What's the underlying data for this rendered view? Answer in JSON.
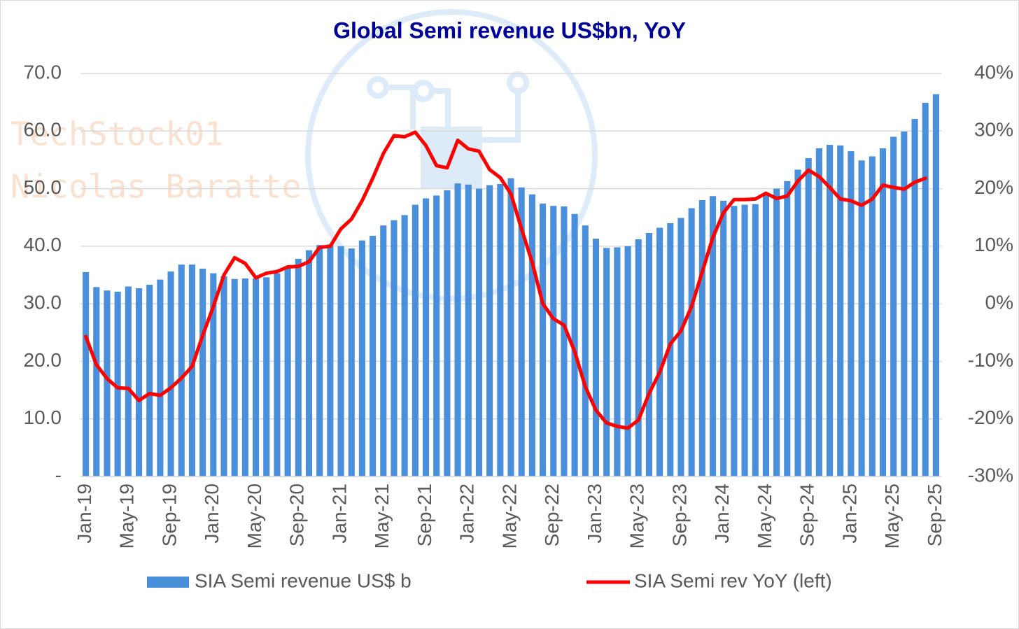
{
  "chart_data": {
    "type": "bar+line",
    "title": "Global Semi revenue US$bn, YoY",
    "watermark": [
      "TechStock01",
      "Nicolas Baratte"
    ],
    "categories": [
      "Jan-19",
      null,
      null,
      null,
      "May-19",
      null,
      null,
      null,
      "Sep-19",
      null,
      null,
      null,
      "Jan-20",
      null,
      null,
      null,
      "May-20",
      null,
      null,
      null,
      "Sep-20",
      null,
      null,
      null,
      "Jan-21",
      null,
      null,
      null,
      "May-21",
      null,
      null,
      null,
      "Sep-21",
      null,
      null,
      null,
      "Jan-22",
      null,
      null,
      null,
      "May-22",
      null,
      null,
      null,
      "Sep-22",
      null,
      null,
      null,
      "Jan-23",
      null,
      null,
      null,
      "May-23",
      null,
      null,
      null,
      "Sep-23",
      null,
      null,
      null,
      "Jan-24",
      null,
      null,
      null,
      "May-24",
      null,
      null,
      null,
      "Sep-24",
      null,
      null,
      null,
      "Jan-25",
      null,
      null,
      null,
      "May-25",
      null,
      null,
      null,
      "Sep-25"
    ],
    "series": [
      {
        "name": "SIA Semi revenue US$ b",
        "type": "bar",
        "color": "#4a8fdb",
        "values": [
          35.5,
          32.9,
          32.3,
          32.1,
          33.0,
          32.7,
          33.3,
          34.2,
          35.6,
          36.8,
          36.8,
          36.1,
          35.3,
          34.8,
          34.3,
          34.4,
          34.4,
          34.6,
          35.3,
          36.4,
          37.8,
          39.3,
          40.2,
          40.3,
          40.0,
          39.6,
          41.0,
          41.8,
          43.6,
          44.5,
          45.4,
          47.2,
          48.3,
          48.8,
          49.7,
          50.9,
          50.7,
          50.0,
          50.6,
          50.8,
          51.8,
          50.2,
          49.0,
          47.4,
          47.0,
          46.9,
          45.6,
          43.6,
          41.3,
          39.7,
          39.8,
          40.0,
          41.2,
          42.3,
          43.2,
          44.0,
          44.9,
          46.6,
          48.0,
          48.7,
          47.9,
          47.0,
          47.2,
          47.3,
          48.9,
          50.0,
          51.3,
          53.3,
          55.3,
          57.0,
          57.6,
          57.5,
          56.5,
          54.9,
          55.6,
          57.0,
          59.0,
          59.9,
          62.1,
          64.9,
          66.4
        ]
      },
      {
        "name": "SIA Semi rev YoY (left)",
        "type": "line",
        "axis": "y2",
        "color": "#ff0000",
        "values": [
          -5.7,
          -10.6,
          -13.0,
          -14.6,
          -14.7,
          -16.8,
          -15.6,
          -15.9,
          -14.6,
          -12.9,
          -10.9,
          -5.5,
          -0.5,
          5.0,
          8.0,
          7.0,
          4.5,
          5.3,
          5.6,
          6.4,
          6.5,
          7.3,
          9.8,
          10.0,
          13.0,
          14.7,
          17.9,
          21.8,
          26.1,
          29.2,
          29.0,
          29.8,
          27.5,
          24.0,
          23.6,
          28.4,
          26.9,
          26.5,
          23.3,
          21.9,
          19.1,
          13.0,
          7.2,
          0.0,
          -2.6,
          -3.7,
          -8.3,
          -14.4,
          -18.5,
          -20.7,
          -21.3,
          -21.6,
          -20.2,
          -15.6,
          -11.9,
          -7.0,
          -4.7,
          -0.5,
          5.5,
          11.5,
          15.8,
          18.1,
          18.1,
          18.2,
          19.2,
          18.3,
          18.7,
          21.3,
          23.2,
          22.1,
          20.2,
          18.2,
          17.9,
          17.1,
          18.2,
          20.6,
          20.2,
          19.9,
          21.1,
          21.8,
          null
        ]
      }
    ],
    "ylim": [
      0,
      70
    ],
    "yticks": [
      {
        "value": 0,
        "label": "-"
      },
      {
        "value": 10,
        "label": "10.0"
      },
      {
        "value": 20,
        "label": "20.0"
      },
      {
        "value": 30,
        "label": "30.0"
      },
      {
        "value": 40,
        "label": "40.0"
      },
      {
        "value": 50,
        "label": "50.0"
      },
      {
        "value": 60,
        "label": "60.0"
      },
      {
        "value": 70,
        "label": "70.0"
      }
    ],
    "y2lim": [
      -30,
      40
    ],
    "y2ticks": [
      {
        "value": -30,
        "label": "-30%"
      },
      {
        "value": -20,
        "label": "-20%"
      },
      {
        "value": -10,
        "label": "-10%"
      },
      {
        "value": 0,
        "label": "0%"
      },
      {
        "value": 10,
        "label": "10%"
      },
      {
        "value": 20,
        "label": "20%"
      },
      {
        "value": 30,
        "label": "30%"
      },
      {
        "value": 40,
        "label": "40%"
      }
    ],
    "grid": true,
    "legend": "bottom"
  }
}
